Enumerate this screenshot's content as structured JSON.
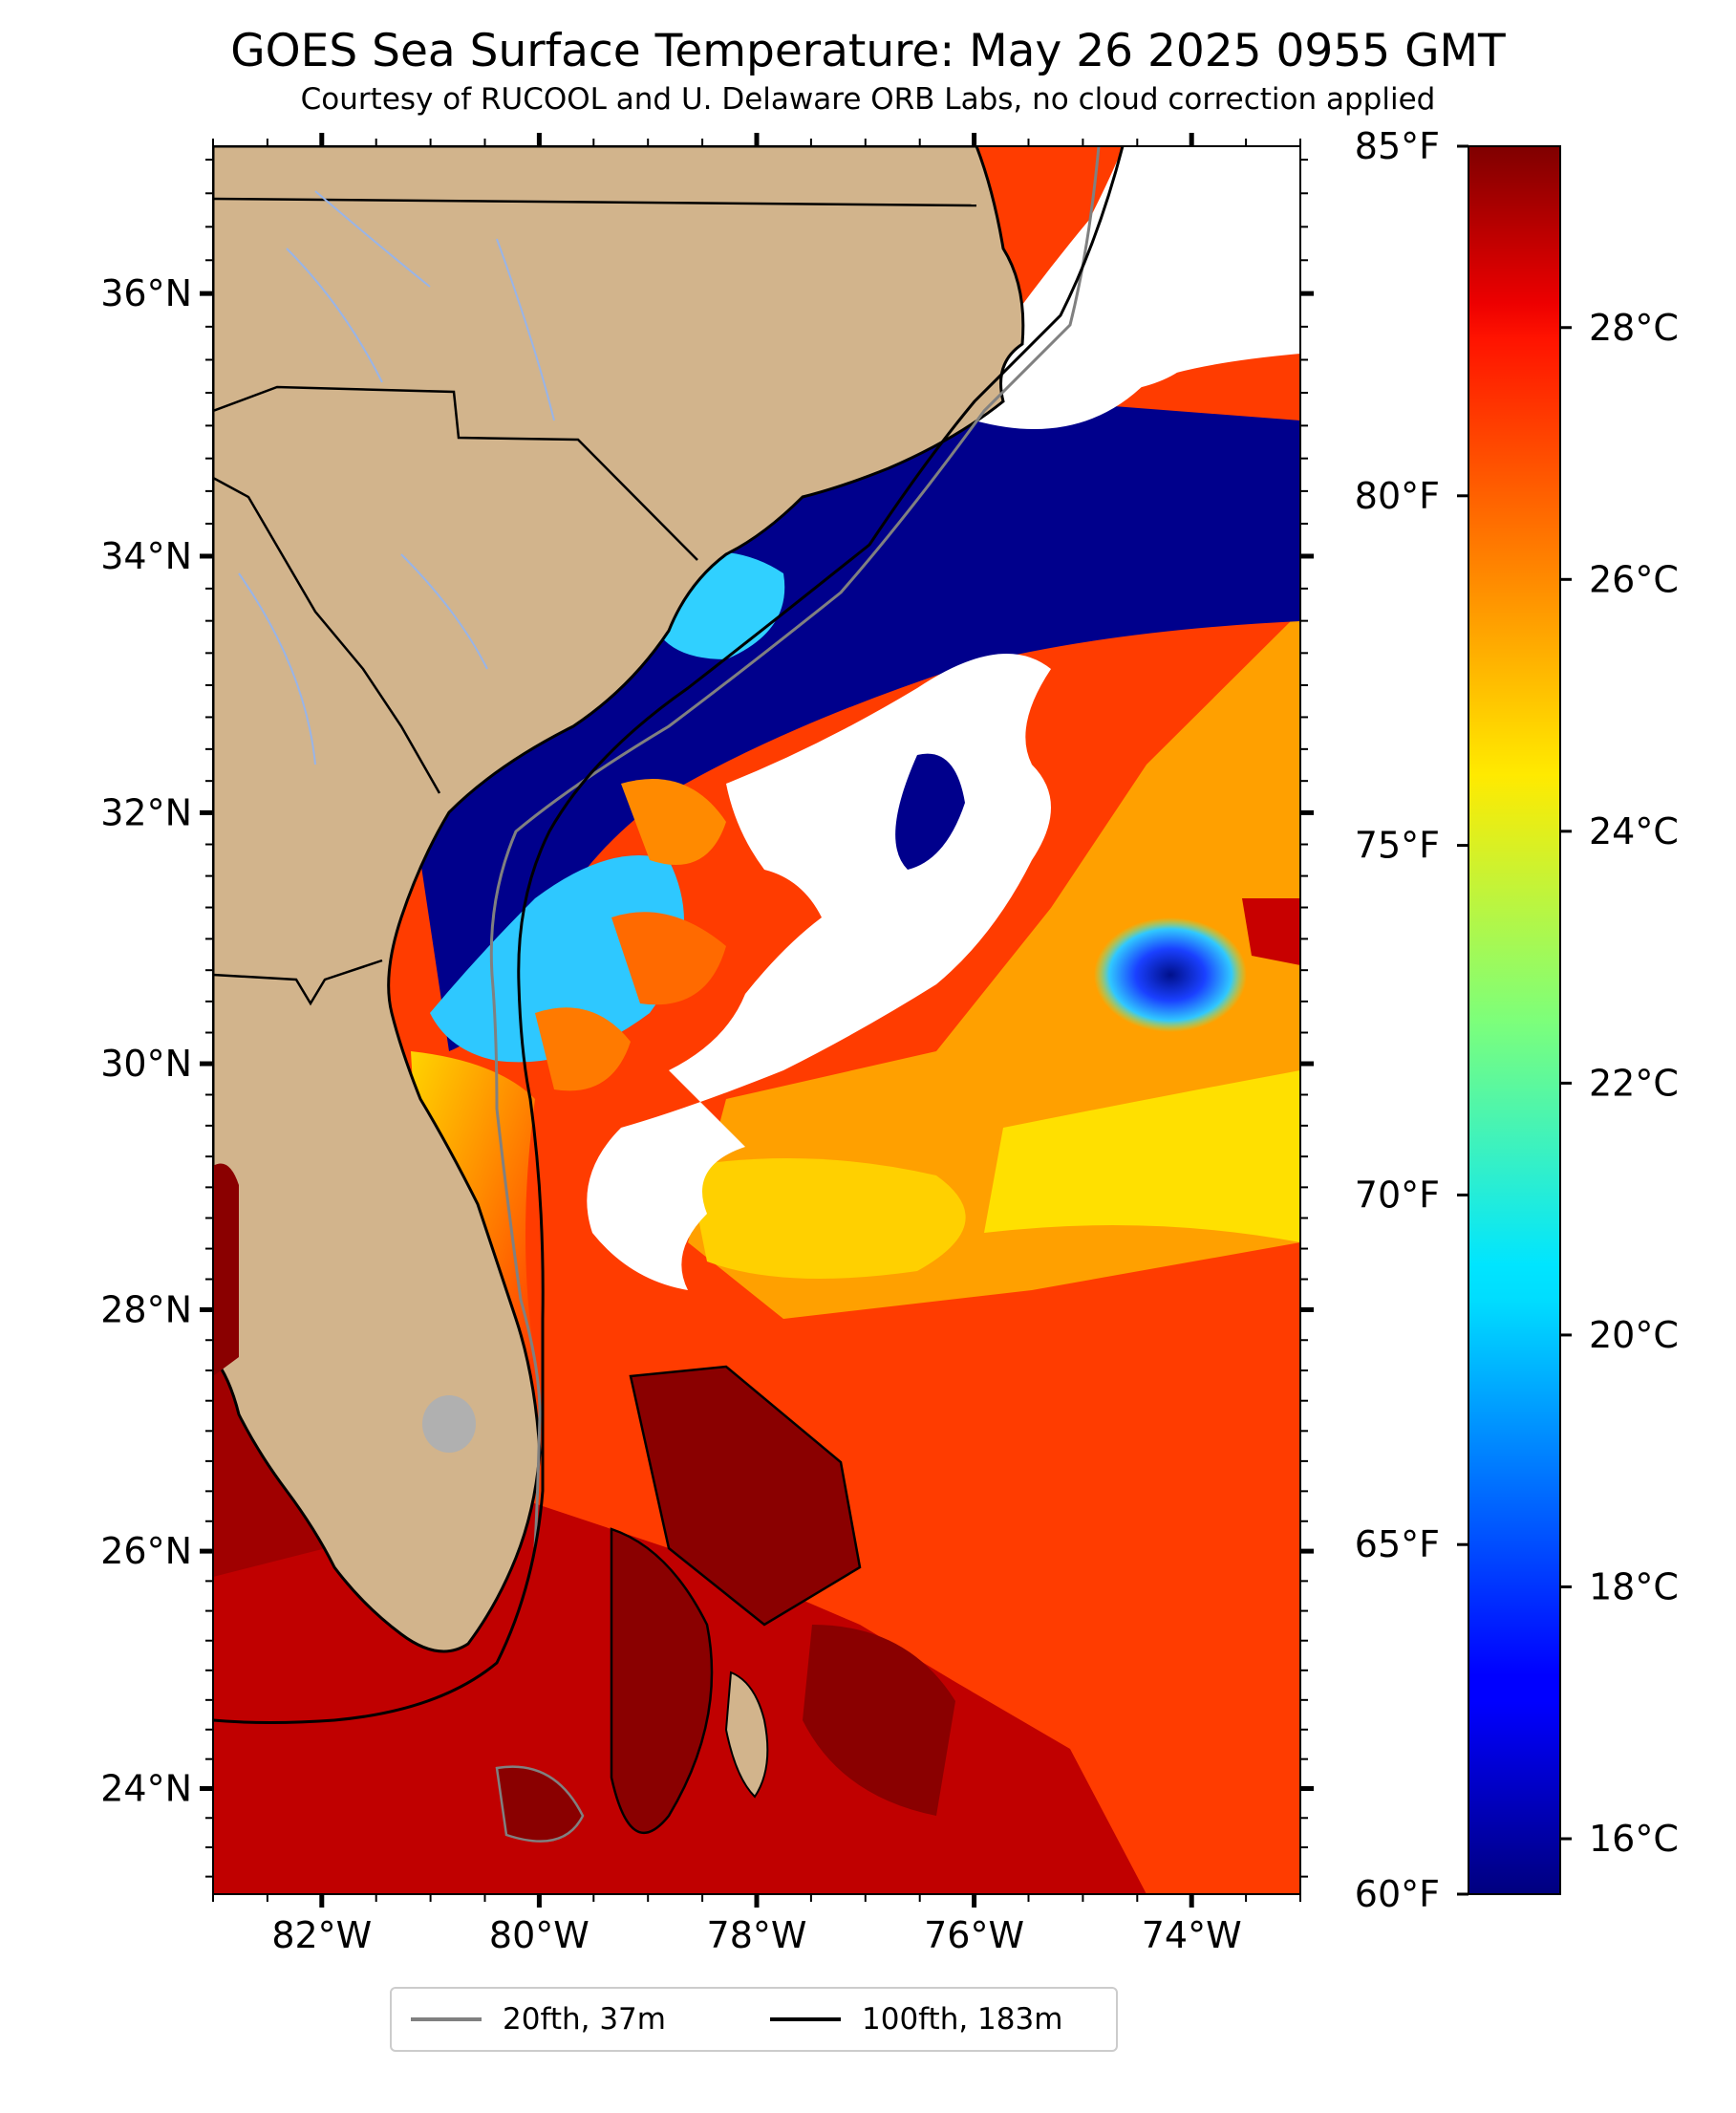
{
  "title": "GOES Sea Surface Temperature: May 26 2025 0955 GMT",
  "subtitle": "Courtesy of RUCOOL and U. Delaware ORB Labs, no cloud correction applied",
  "map": {
    "lon_range": [
      -83.0,
      -73.0
    ],
    "lat_range": [
      23.1,
      37.1
    ],
    "lat_ticks": [
      {
        "value": 36,
        "label": "36°N"
      },
      {
        "value": 34,
        "label": "34°N"
      },
      {
        "value": 32,
        "label": "32°N"
      },
      {
        "value": 30,
        "label": "30°N"
      },
      {
        "value": 28,
        "label": "28°N"
      },
      {
        "value": 26,
        "label": "26°N"
      },
      {
        "value": 24,
        "label": "24°N"
      }
    ],
    "lon_ticks": [
      {
        "value": -82,
        "label": "82°W"
      },
      {
        "value": -80,
        "label": "80°W"
      },
      {
        "value": -78,
        "label": "78°W"
      },
      {
        "value": -76,
        "label": "76°W"
      },
      {
        "value": -74,
        "label": "74°W"
      }
    ],
    "colors": {
      "land": "#d2b48c",
      "cloud": "#ffffff",
      "isobath_20": "#808080",
      "isobath_100": "#000000"
    }
  },
  "colorbar": {
    "colormap": "jet",
    "celsius_range": [
      15.56,
      29.44
    ],
    "fahrenheit_range": [
      60,
      85
    ],
    "celsius_ticks": [
      {
        "value": 16,
        "label": "16°C"
      },
      {
        "value": 18,
        "label": "18°C"
      },
      {
        "value": 20,
        "label": "20°C"
      },
      {
        "value": 22,
        "label": "22°C"
      },
      {
        "value": 24,
        "label": "24°C"
      },
      {
        "value": 26,
        "label": "26°C"
      },
      {
        "value": 28,
        "label": "28°C"
      }
    ],
    "fahrenheit_ticks": [
      {
        "value": 60,
        "label": "60°F"
      },
      {
        "value": 65,
        "label": "65°F"
      },
      {
        "value": 70,
        "label": "70°F"
      },
      {
        "value": 75,
        "label": "75°F"
      },
      {
        "value": 80,
        "label": "80°F"
      },
      {
        "value": 85,
        "label": "85°F"
      }
    ]
  },
  "legend": {
    "items": [
      {
        "label": "20fth, 37m",
        "color": "#808080"
      },
      {
        "label": "100fth, 183m",
        "color": "#000000"
      }
    ]
  }
}
